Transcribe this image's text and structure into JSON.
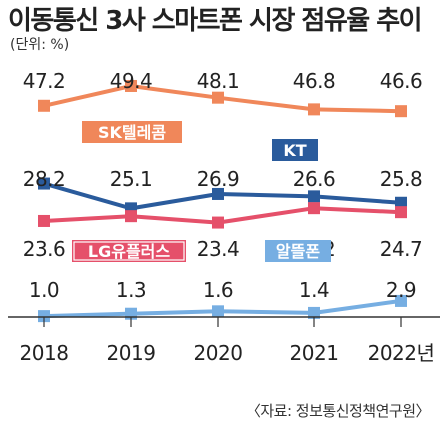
{
  "title": "이동통신 3사 스마트폰 시장 점유율 추이",
  "unit": "(단위: %)",
  "source": "〈자료: 정보통신정책연구원〉",
  "chart_data": {
    "type": "line",
    "categories": [
      "2018",
      "2019",
      "2020",
      "2021",
      "2022년"
    ],
    "series": [
      {
        "name": "SK텔레콤",
        "values": [
          47.2,
          49.4,
          48.1,
          46.8,
          46.6
        ],
        "color": "#f0875a",
        "label_color": "#f0875a"
      },
      {
        "name": "KT",
        "values": [
          28.2,
          25.1,
          26.9,
          26.6,
          25.8
        ],
        "color": "#2a5b9c",
        "label_color": "#2a5b9c"
      },
      {
        "name": "LG유플러스",
        "values": [
          23.6,
          24.2,
          23.4,
          25.2,
          24.7
        ],
        "color": "#e5506a",
        "label_color": "#e5506a"
      },
      {
        "name": "알뜰폰",
        "values": [
          1.0,
          1.3,
          1.6,
          1.4,
          2.9
        ],
        "color": "#76aee2",
        "label_color": "#76aee2"
      }
    ]
  }
}
